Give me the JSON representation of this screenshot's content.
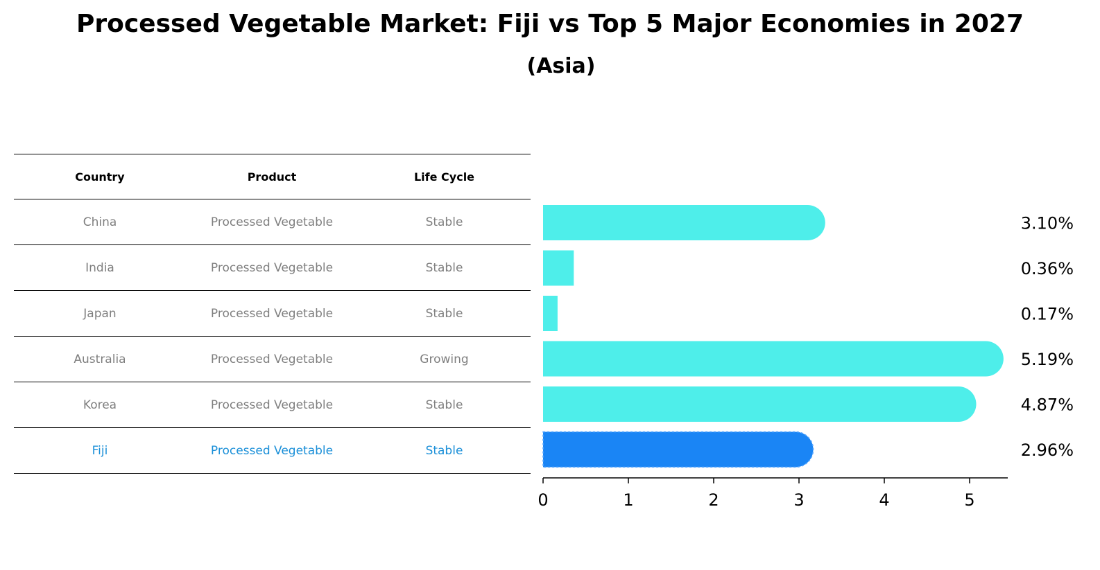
{
  "title": "Processed Vegetable Market: Fiji vs Top 5 Major Economies in 2027",
  "subtitle": "(Asia)",
  "table": {
    "headers": [
      "Country",
      "Product",
      "Life Cycle"
    ],
    "rows": [
      [
        "China",
        "Processed Vegetable",
        "Stable"
      ],
      [
        "India",
        "Processed Vegetable",
        "Stable"
      ],
      [
        "Japan",
        "Processed Vegetable",
        "Stable"
      ],
      [
        "Australia",
        "Processed Vegetable",
        "Growing"
      ],
      [
        "Korea",
        "Processed Vegetable",
        "Stable"
      ],
      [
        "Fiji",
        "Processed Vegetable",
        "Stable"
      ]
    ],
    "highlight_row": "Fiji"
  },
  "colors": {
    "bar": "#4eeeea",
    "highlight_bar": "#1a85f5",
    "highlight_text": "#1a8fd8",
    "muted_text": "#7f7f7f"
  },
  "chart_data": {
    "type": "bar",
    "orientation": "horizontal",
    "categories": [
      "China",
      "India",
      "Japan",
      "Australia",
      "Korea",
      "Fiji"
    ],
    "values": [
      3.1,
      0.36,
      0.17,
      5.19,
      4.87,
      2.96
    ],
    "value_labels": [
      "3.10%",
      "0.36%",
      "0.17%",
      "5.19%",
      "4.87%",
      "2.96%"
    ],
    "highlight": "Fiji",
    "xlim": [
      0,
      5.45
    ],
    "xticks": [
      0,
      1,
      2,
      3,
      4,
      5
    ],
    "grid": false
  }
}
